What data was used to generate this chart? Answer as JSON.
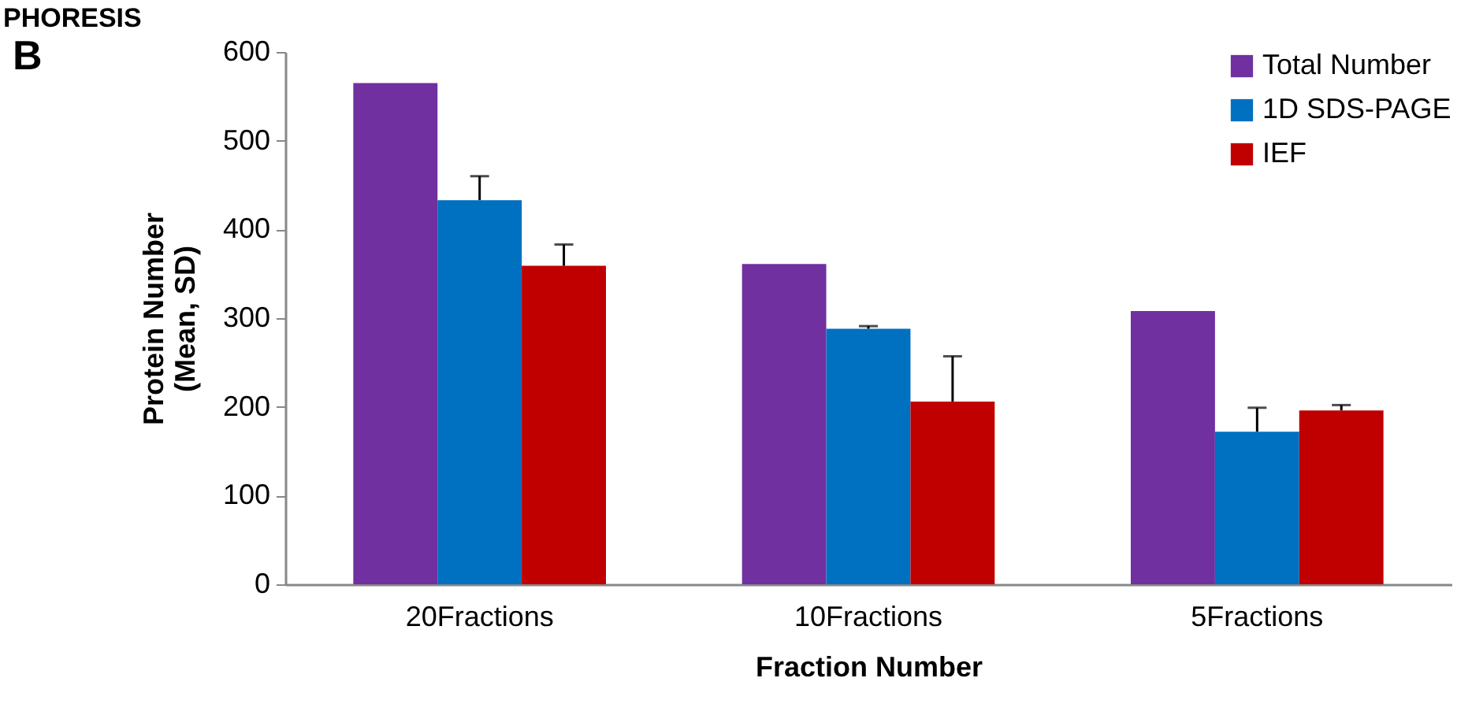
{
  "chart_data": {
    "type": "bar",
    "title": "B",
    "annotations": [
      "PHORESIS"
    ],
    "xlabel": "Fraction Number",
    "ylabel": "Protein Number\n(Mean, SD)",
    "categories": [
      "20Fractions",
      "10Fractions",
      "5Fractions"
    ],
    "series": [
      {
        "name": "Total Number",
        "color": "#7030a0",
        "values": [
          565,
          361,
          308
        ]
      },
      {
        "name": "1D SDS-PAGE",
        "color": "#0070c0",
        "values": [
          433,
          288,
          172
        ],
        "errors": [
          27,
          3,
          27
        ]
      },
      {
        "name": "IEF",
        "color": "#c00000",
        "values": [
          359,
          206,
          196
        ],
        "errors": [
          24,
          51,
          6
        ]
      }
    ],
    "ylim": [
      0,
      600
    ],
    "yticks": [
      0,
      100,
      200,
      300,
      400,
      500,
      600
    ],
    "grid": false,
    "legend": "top right"
  }
}
